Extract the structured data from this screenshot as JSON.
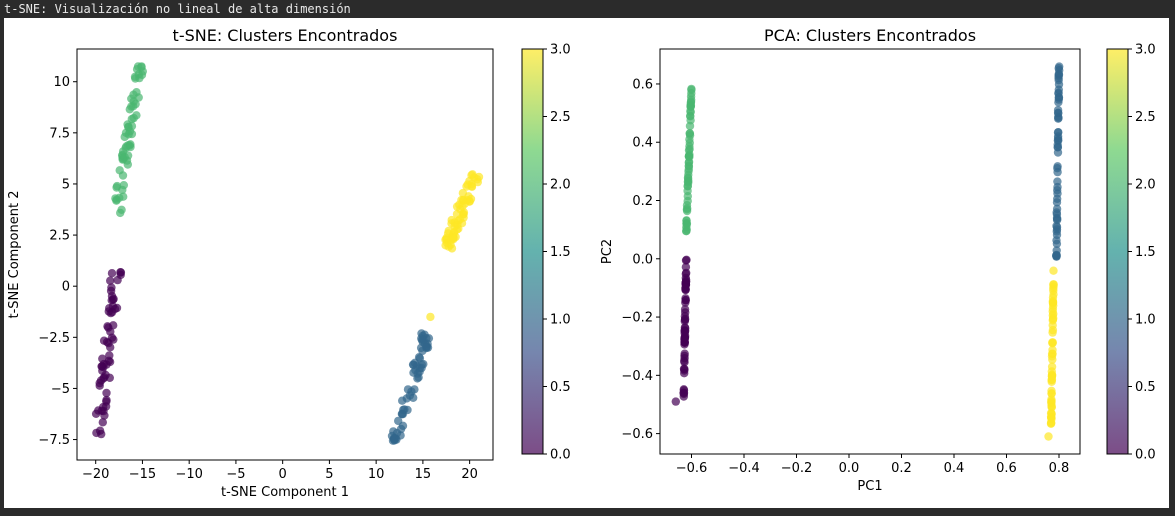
{
  "window": {
    "title": "t-SNE: Visualización no lineal de alta dimensión"
  },
  "colormap": {
    "name": "viridis",
    "stops": [
      "#440154",
      "#3b528b",
      "#21918c",
      "#5ec962",
      "#fde725"
    ],
    "alpha": 0.7
  },
  "chart_data": [
    {
      "type": "scatter",
      "title": "t-SNE: Clusters Encontrados",
      "xlabel": "t-SNE Component 1",
      "ylabel": "t-SNE Component 2",
      "xlim": [
        -22,
        22.5
      ],
      "ylim": [
        -8.5,
        11.6
      ],
      "xticks": [
        -20,
        -15,
        -10,
        -5,
        0,
        5,
        10,
        15,
        20
      ],
      "yticks": [
        -7.5,
        -5.0,
        -2.5,
        0.0,
        2.5,
        5.0,
        7.5,
        10.0
      ],
      "grid": false,
      "colorbar": {
        "range": [
          0.0,
          3.0
        ],
        "ticks": [
          0.0,
          0.5,
          1.0,
          1.5,
          2.0,
          2.5,
          3.0
        ]
      },
      "clusters": [
        {
          "label": 0,
          "start": [
            -19.8,
            -7.7
          ],
          "end": [
            -17.8,
            0.8
          ],
          "n": 60,
          "spread": 0.25
        },
        {
          "label": 1,
          "start": [
            12.0,
            -7.6
          ],
          "end": [
            15.5,
            -2.3
          ],
          "n": 60,
          "spread": 0.25
        },
        {
          "label": 2,
          "start": [
            -17.8,
            3.3
          ],
          "end": [
            -15.3,
            10.7
          ],
          "n": 60,
          "spread": 0.22
        },
        {
          "label": 3,
          "start": [
            17.5,
            1.8
          ],
          "end": [
            20.6,
            5.5
          ],
          "n": 60,
          "spread": 0.25
        }
      ],
      "extra_points": [
        {
          "label": 3,
          "x": 15.8,
          "y": -1.5
        }
      ]
    },
    {
      "type": "scatter",
      "title": "PCA: Clusters Encontrados",
      "xlabel": "PC1",
      "ylabel": "PC2",
      "xlim": [
        -0.72,
        0.88
      ],
      "ylim": [
        -0.67,
        0.72
      ],
      "xticks": [
        -0.6,
        -0.4,
        -0.2,
        0.0,
        0.2,
        0.4,
        0.6,
        0.8
      ],
      "xtick_labels": [
        "−0.6",
        "−0.4",
        "−0.2",
        "0.0",
        "0.2",
        "0.4",
        "0.6",
        "0.8"
      ],
      "yticks": [
        -0.6,
        -0.4,
        -0.2,
        0.0,
        0.2,
        0.4,
        0.6
      ],
      "ytick_labels": [
        "−0.6",
        "−0.4",
        "−0.2",
        "0.0",
        "0.2",
        "0.4",
        "0.6"
      ],
      "grid": false,
      "colorbar": {
        "range": [
          0.0,
          3.0
        ],
        "ticks": [
          0.0,
          0.5,
          1.0,
          1.5,
          2.0,
          2.5,
          3.0
        ]
      },
      "clusters": [
        {
          "label": 0,
          "start": [
            -0.63,
            -0.48
          ],
          "end": [
            -0.62,
            0.0
          ],
          "n": 60,
          "spread": 0.012
        },
        {
          "label": 1,
          "start": [
            0.79,
            0.0
          ],
          "end": [
            0.8,
            0.66
          ],
          "n": 60,
          "spread": 0.012
        },
        {
          "label": 2,
          "start": [
            -0.62,
            0.08
          ],
          "end": [
            -0.6,
            0.59
          ],
          "n": 60,
          "spread": 0.012
        },
        {
          "label": 3,
          "start": [
            0.77,
            -0.58
          ],
          "end": [
            0.78,
            -0.03
          ],
          "n": 60,
          "spread": 0.012
        }
      ],
      "extra_points": [
        {
          "label": 0,
          "x": -0.66,
          "y": -0.49
        },
        {
          "label": 3,
          "x": 0.76,
          "y": -0.61
        }
      ]
    }
  ]
}
